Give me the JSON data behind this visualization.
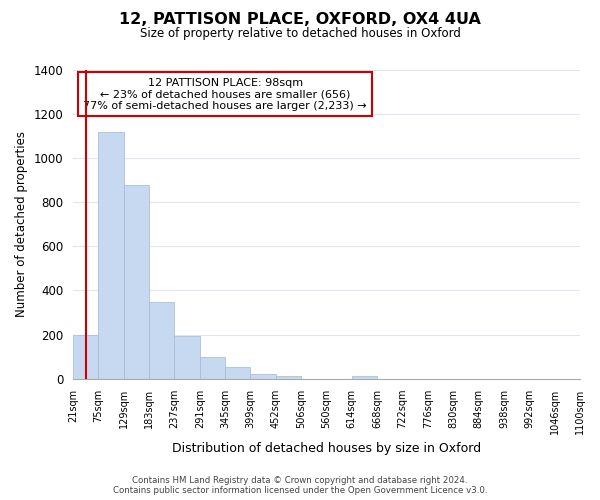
{
  "title": "12, PATTISON PLACE, OXFORD, OX4 4UA",
  "subtitle": "Size of property relative to detached houses in Oxford",
  "xlabel": "Distribution of detached houses by size in Oxford",
  "ylabel": "Number of detached properties",
  "tick_labels": [
    "21sqm",
    "75sqm",
    "129sqm",
    "183sqm",
    "237sqm",
    "291sqm",
    "345sqm",
    "399sqm",
    "452sqm",
    "506sqm",
    "560sqm",
    "614sqm",
    "668sqm",
    "722sqm",
    "776sqm",
    "830sqm",
    "884sqm",
    "938sqm",
    "992sqm",
    "1046sqm",
    "1100sqm"
  ],
  "bar_heights": [
    200,
    1120,
    880,
    350,
    195,
    100,
    55,
    20,
    12,
    0,
    0,
    10,
    0,
    0,
    0,
    0,
    0,
    0,
    0,
    0
  ],
  "bar_color": "#c6d9f1",
  "bar_edge_color": "#a0b8d8",
  "vline_position": 0.5,
  "vline_color": "#cc0000",
  "ylim": [
    0,
    1400
  ],
  "yticks": [
    0,
    200,
    400,
    600,
    800,
    1000,
    1200,
    1400
  ],
  "annotation_title": "12 PATTISON PLACE: 98sqm",
  "annotation_line1": "← 23% of detached houses are smaller (656)",
  "annotation_line2": "77% of semi-detached houses are larger (2,233) →",
  "annotation_box_color": "#ffffff",
  "annotation_box_edge": "#cc0000",
  "footer_line1": "Contains HM Land Registry data © Crown copyright and database right 2024.",
  "footer_line2": "Contains public sector information licensed under the Open Government Licence v3.0.",
  "background_color": "#ffffff",
  "grid_color": "#dde8f0"
}
